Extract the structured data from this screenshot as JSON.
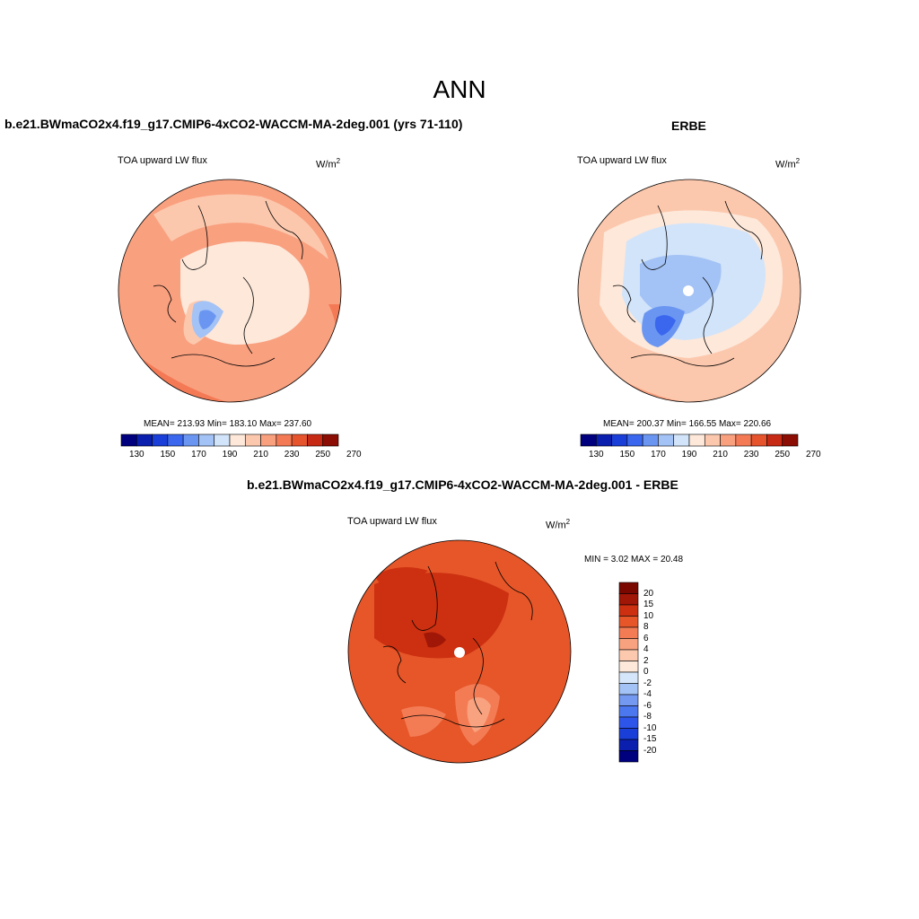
{
  "title": "ANN",
  "colorbar_palette": [
    "#00007f",
    "#0a1fae",
    "#1a3fd8",
    "#3a67ee",
    "#6a96f2",
    "#a3c2f5",
    "#d2e4fa",
    "#fde8da",
    "#fcc8ad",
    "#f9a07f",
    "#f47a55",
    "#e6542e",
    "#c72a14",
    "#8b0d03"
  ],
  "diff_palette": [
    "#00007f",
    "#0a1fae",
    "#1a3fd8",
    "#2e55ea",
    "#4c78ef",
    "#7399f1",
    "#a3c2f5",
    "#d6e6fa",
    "#fde8da",
    "#fcc9ae",
    "#f9a27f",
    "#f47c55",
    "#e65629",
    "#cc3010",
    "#a01607",
    "#7a0800"
  ],
  "left_panel": {
    "title": "b.e21.BWmaCO2x4.f19_g17.CMIP6-4xCO2-WACCM-MA-2deg.001 (yrs 71-110)",
    "variable": "TOA upward LW flux",
    "units": "W/m",
    "units_sup": "2",
    "stats": "MEAN= 213.93  Min= 183.10  Max= 237.60",
    "colorbar_ticks": [
      "130",
      "150",
      "170",
      "190",
      "210",
      "230",
      "250",
      "270"
    ]
  },
  "right_panel": {
    "title": "ERBE",
    "variable": "TOA upward LW flux",
    "units": "W/m",
    "units_sup": "2",
    "stats": "MEAN= 200.37  Min= 166.55  Max= 220.66",
    "colorbar_ticks": [
      "130",
      "150",
      "170",
      "190",
      "210",
      "230",
      "250",
      "270"
    ]
  },
  "diff_panel": {
    "title": "b.e21.BWmaCO2x4.f19_g17.CMIP6-4xCO2-WACCM-MA-2deg.001 - ERBE",
    "variable": "TOA upward LW flux",
    "units": "W/m",
    "units_sup": "2",
    "minmax": "MIN =   3.02 MAX =  20.48",
    "colorbar_ticks": [
      "20",
      "15",
      "10",
      "8",
      "6",
      "4",
      "2",
      "0",
      "-2",
      "-4",
      "-6",
      "-8",
      "-10",
      "-15",
      "-20"
    ]
  }
}
